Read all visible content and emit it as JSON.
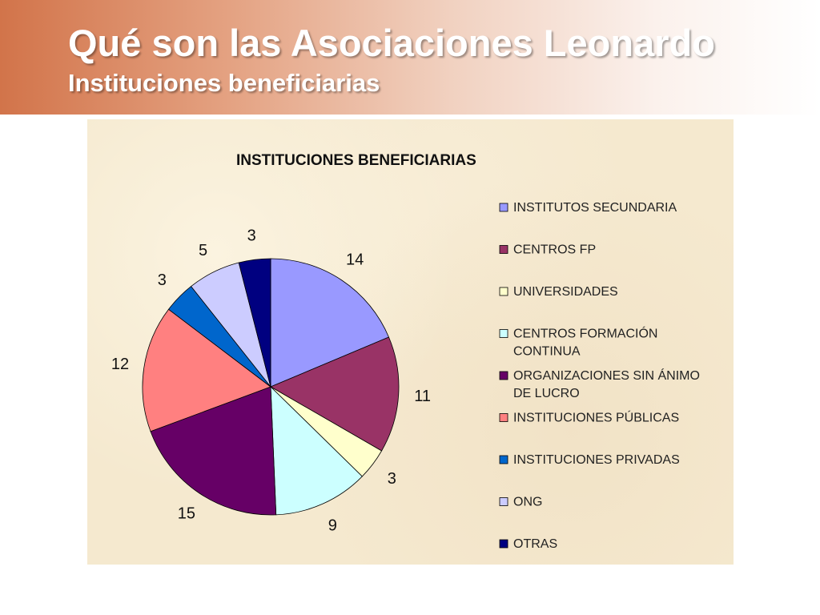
{
  "slide": {
    "title": "Qué son las Asociaciones Leonardo",
    "subtitle": "Instituciones beneficiarias"
  },
  "chart_data": {
    "type": "pie",
    "title": "INSTITUCIONES BENEFICIARIAS",
    "legend_position": "right",
    "slices": [
      {
        "label": [
          "INSTITUTOS SECUNDARIA"
        ],
        "value": 14,
        "color": "#9999ff"
      },
      {
        "label": [
          "CENTROS FP"
        ],
        "value": 11,
        "color": "#993366"
      },
      {
        "label": [
          "UNIVERSIDADES"
        ],
        "value": 3,
        "color": "#ffffcc"
      },
      {
        "label": [
          "CENTROS FORMACIÓN",
          "CONTINUA"
        ],
        "value": 9,
        "color": "#ccffff"
      },
      {
        "label": [
          "ORGANIZACIONES SIN ÁNIMO",
          "DE LUCRO"
        ],
        "value": 15,
        "color": "#660066"
      },
      {
        "label": [
          "INSTITUCIONES PÚBLICAS"
        ],
        "value": 12,
        "color": "#ff8080"
      },
      {
        "label": [
          "INSTITUCIONES PRIVADAS"
        ],
        "value": 3,
        "color": "#0066cc"
      },
      {
        "label": [
          "ONG"
        ],
        "value": 5,
        "color": "#ccccff"
      },
      {
        "label": [
          "OTRAS"
        ],
        "value": 3,
        "color": "#000080"
      }
    ]
  }
}
